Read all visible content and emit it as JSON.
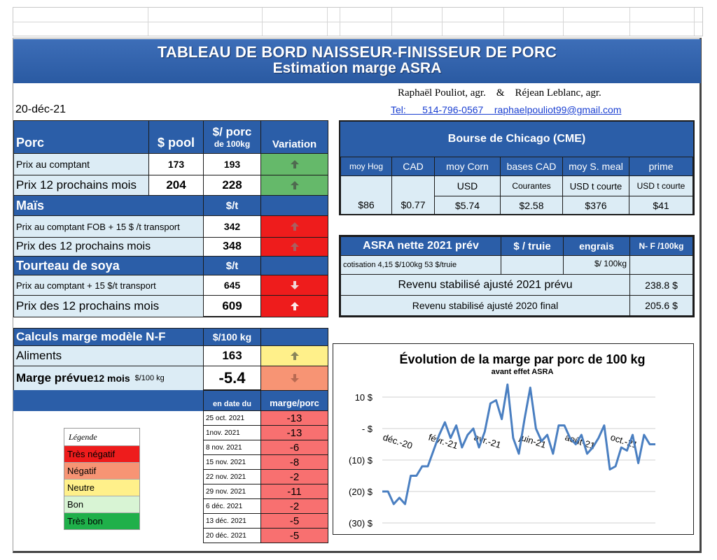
{
  "banner": {
    "title": "TABLEAU  DE BORD NAISSEUR-FINISSEUR  DE PORC",
    "subtitle": "Estimation marge ASRA"
  },
  "date": "20-déc-21",
  "authors": {
    "names": "Raphaël Pouliot, agr.    &    Réjean Leblanc, agr.",
    "contact": "Tel:      514-796-0567    raphaelpouliot99@gmail.com"
  },
  "porc": {
    "headers": {
      "label": "Porc",
      "pool": "$ pool",
      "per100_a": "$/ porc",
      "per100_b": "de 100kg",
      "variation": "Variation"
    },
    "rows": [
      {
        "label": "Prix au comptant",
        "pool": "173",
        "per100": "193",
        "color": "#65b96a",
        "arrow": "up"
      },
      {
        "label": "Prix 12 prochains mois",
        "pool": "204",
        "per100": "228",
        "color": "#65b96a",
        "arrow": "up"
      }
    ]
  },
  "mais": {
    "headers": {
      "label": "Maïs",
      "unit": "$/t"
    },
    "rows": [
      {
        "label": "Prix au comptant  FOB + 15 $ /t transport",
        "value": "342",
        "color": "#ee1c1c",
        "arrow": "up"
      },
      {
        "label": "Prix des 12 prochains mois",
        "value": "348",
        "color": "#ee1c1c",
        "arrow": "up"
      }
    ]
  },
  "soya": {
    "headers": {
      "label": "Tourteau de soya",
      "unit": "$/t"
    },
    "rows": [
      {
        "label": "Prix au comptant  + 15 $/t  transport",
        "value": "645",
        "color": "#ee1c1c",
        "arrow": "down"
      },
      {
        "label": "Prix des 12 prochains mois",
        "value": "609",
        "color": "#ee1c1c",
        "arrow": "up"
      }
    ]
  },
  "cme": {
    "title": "Bourse de Chicago (CME)",
    "headers": [
      "moy Hog",
      "CAD",
      "moy Corn",
      "bases CAD",
      "moy S. meal",
      "prime"
    ],
    "subheaders": [
      "",
      "",
      "USD",
      "Courantes",
      "USD t courte",
      "USD t courte"
    ],
    "values": [
      "$86",
      "$0.77",
      "$5.74",
      "$2.58",
      "$376",
      "$41"
    ]
  },
  "asra": {
    "title": "ASRA nette 2021 prév",
    "h_truie": "$ / truie",
    "h_engrais": "engrais",
    "h_nf": "N- F /100kg",
    "cotisation": "cotisation 4,15 $/100kg  53 $/truie",
    "per100": "$/ 100kg",
    "revenu2021_label": "Revenu stabilisé ajusté 2021 prévu",
    "revenu2021_value": "238.8 $",
    "revenu2020_label": "Revenu stabilisé ajusté 2020 final",
    "revenu2020_value": "205.6 $"
  },
  "calc": {
    "title": "Calculs marge  modèle N-F",
    "unit": "$/100 kg",
    "aliments_label": "Aliments",
    "aliments_value": "163",
    "marge_label_big": "Marge prévue ",
    "marge_label_mid": "12 mois ",
    "marge_label_small": "$/100 kg",
    "marge_value": "-5.4",
    "col_date": "en date du",
    "col_marge": "marge/porc",
    "history": [
      {
        "date": "25 oct. 2021",
        "value": "-13"
      },
      {
        "date": "1nov. 2021",
        "value": "-13"
      },
      {
        "date": "8 nov. 2021",
        "value": "-6"
      },
      {
        "date": "15 nov. 2021",
        "value": "-8"
      },
      {
        "date": "22 nov. 2021",
        "value": "-2"
      },
      {
        "date": "29 nov. 2021",
        "value": "-11"
      },
      {
        "date": "6 déc. 2021",
        "value": "-2"
      },
      {
        "date": "13 déc. 2021",
        "value": "-5"
      },
      {
        "date": "20 déc. 2021",
        "value": "-5"
      }
    ]
  },
  "legend": {
    "title": "Légende",
    "items": [
      {
        "label": "Très négatif",
        "color": "#ee1c1c"
      },
      {
        "label": "Négatif",
        "color": "#f79474"
      },
      {
        "label": "Neutre",
        "color": "#fff08a"
      },
      {
        "label": "Bon",
        "color": "#d8f4d4"
      },
      {
        "label": "Très bon",
        "color": "#1fb04a"
      }
    ]
  },
  "colors": {
    "header_blue": "#2b5ea8",
    "light_blue": "#dcecf5",
    "line": "#4a7fc1"
  },
  "chart_data": {
    "type": "line",
    "title": "Évolution de la marge par porc de 100 kg",
    "subtitle": "avant effet ASRA",
    "ylim": [
      -30,
      10
    ],
    "yticks": [
      10,
      0,
      -10,
      -20,
      -30
    ],
    "ytick_labels": [
      "10 $",
      "-  $",
      "(10) $",
      "(20) $",
      "(30) $"
    ],
    "xtick_labels": [
      "déc.-20",
      "févr.-21",
      "avr.-21",
      "juin-21",
      "août-21",
      "oct.-21"
    ],
    "xtick_index": [
      0,
      8,
      16,
      24,
      32,
      40
    ],
    "series": [
      {
        "values": [
          -20,
          -20,
          -24,
          -22,
          -24,
          -15,
          -15,
          -12,
          -12,
          -7,
          -2,
          2,
          -3,
          1,
          -6,
          -2,
          0,
          -6,
          -1,
          8,
          9,
          3,
          14,
          -3,
          -8,
          3,
          13,
          0,
          -4,
          -2,
          -8,
          1,
          1,
          -3,
          -5,
          -2,
          -8,
          -6,
          -3,
          1,
          -13,
          -12,
          -6,
          -7,
          -2,
          -11,
          -2,
          -5,
          -5
        ]
      }
    ]
  }
}
